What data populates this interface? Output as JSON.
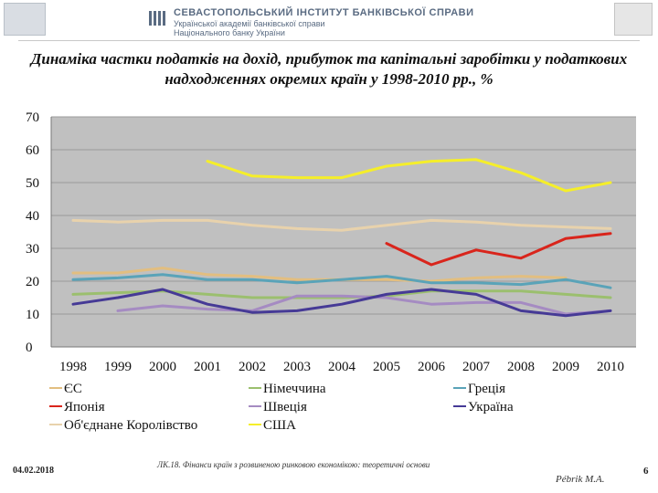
{
  "header": {
    "institute_name": "СЕВАСТОПОЛЬСЬКИЙ ІНСТИТУТ БАНКІВСЬКОЇ СПРАВИ",
    "institute_sub1": "Української академії банківської справи",
    "institute_sub2": "Національного банку України",
    "left_logo_icon": "emblem-icon",
    "right_logo_icon": "coat-of-arms-icon"
  },
  "footer": {
    "date": "04.02.2018",
    "note": "ЛК.18. Фінанси країн з розвиненою ринковою економікою: теоретичні основи",
    "author": "Рébrik М.А.",
    "page": "6"
  },
  "chart_data": {
    "type": "line",
    "title": "Динаміка частки податків на дохід, прибуток та капітальні заробітки у податкових надходженнях окремих країн у 1998-2010 рр., %",
    "xlabel": "",
    "ylabel": "",
    "x": [
      "1998",
      "1999",
      "2000",
      "2001",
      "2002",
      "2003",
      "2004",
      "2005",
      "2006",
      "2007",
      "2008",
      "2009",
      "2010"
    ],
    "ylim": [
      0,
      70
    ],
    "yticks": [
      "0",
      "10",
      "20",
      "30",
      "40",
      "50",
      "60",
      "70"
    ],
    "grid": true,
    "plot_background": "#c0c0c0",
    "legend_position": "bottom",
    "series": [
      {
        "name": "ЄС",
        "color": "#e2be80",
        "values": [
          22.5,
          22.5,
          24,
          22,
          21.5,
          20.5,
          20.5,
          20.5,
          20,
          21,
          21.5,
          21,
          null
        ]
      },
      {
        "name": "Німеччина",
        "color": "#9bbf6e",
        "values": [
          16,
          16.5,
          17,
          16,
          15,
          15,
          15,
          15.5,
          17,
          17,
          17,
          16,
          15
        ]
      },
      {
        "name": "Греція",
        "color": "#5aa3b8",
        "values": [
          20.5,
          21,
          22,
          20.5,
          20.5,
          19.5,
          20.5,
          21.5,
          19.5,
          19.5,
          19,
          20.5,
          18
        ]
      },
      {
        "name": "Японія",
        "color": "#d9251c",
        "values": [
          null,
          null,
          null,
          null,
          null,
          null,
          null,
          31.5,
          25,
          29.5,
          27,
          33,
          34.5
        ]
      },
      {
        "name": "Швеція",
        "color": "#a58bc2",
        "values": [
          null,
          11,
          12.5,
          11.5,
          11,
          15.5,
          15.5,
          15,
          13,
          13.5,
          13.5,
          10,
          11
        ]
      },
      {
        "name": "Україна",
        "color": "#463a96",
        "values": [
          13,
          15,
          17.5,
          13,
          10.5,
          11,
          13,
          16,
          17.5,
          16,
          11,
          9.5,
          11
        ]
      },
      {
        "name": "Об'єднане Королівство",
        "color": "#e8d2ac",
        "values": [
          38.5,
          38,
          38.5,
          38.5,
          37,
          36,
          35.5,
          37,
          38.5,
          38,
          37,
          36.5,
          36
        ]
      },
      {
        "name": "США",
        "color": "#f5ee2a",
        "values": [
          null,
          null,
          null,
          56.5,
          52,
          51.5,
          51.5,
          55,
          56.5,
          57,
          53,
          47.5,
          50
        ]
      }
    ]
  }
}
